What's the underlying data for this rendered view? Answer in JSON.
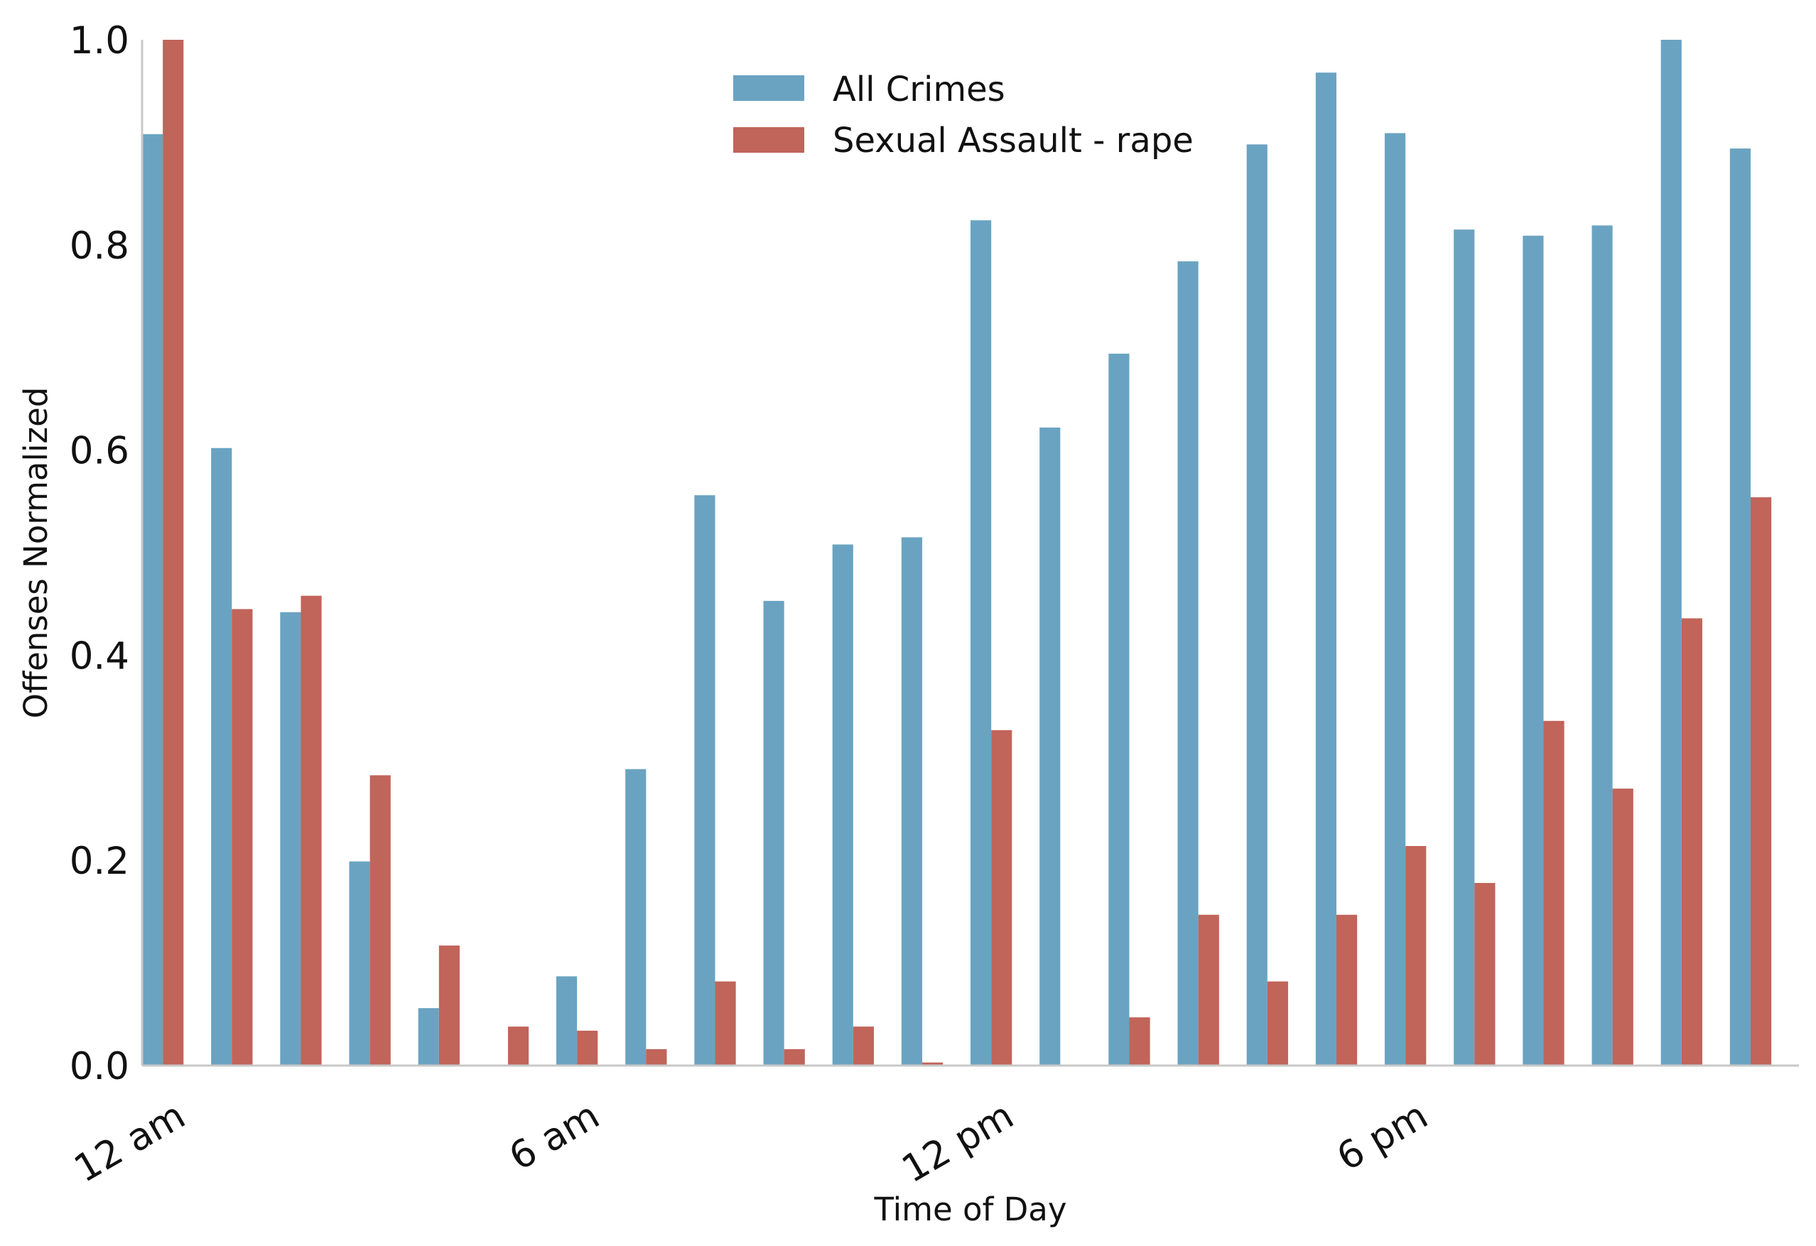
{
  "chart_data": {
    "type": "bar",
    "title": "",
    "xlabel": "Time of Day",
    "ylabel": "Offenses Normalized",
    "ylim": [
      0,
      1.0
    ],
    "yticks": [
      "0.0",
      "0.2",
      "0.4",
      "0.6",
      "0.8",
      "1.0"
    ],
    "xtick_labels": [
      "12 am",
      "6 am",
      "12 pm",
      "6 pm"
    ],
    "xtick_hours": [
      0,
      6,
      12,
      18
    ],
    "x": [
      0,
      1,
      2,
      3,
      4,
      5,
      6,
      7,
      8,
      9,
      10,
      11,
      12,
      13,
      14,
      15,
      16,
      17,
      18,
      19,
      20,
      21,
      22,
      23
    ],
    "grid": false,
    "legend_position": "top-center",
    "series": [
      {
        "name": "All Crimes",
        "color": "#6aa3c1",
        "values": [
          0.908,
          0.602,
          0.442,
          0.199,
          0.056,
          0.0,
          0.087,
          0.289,
          0.556,
          0.453,
          0.508,
          0.515,
          0.824,
          0.622,
          0.694,
          0.784,
          0.898,
          0.968,
          0.909,
          0.815,
          0.809,
          0.819,
          1.0,
          0.894
        ]
      },
      {
        "name": "Sexual Assault - rape",
        "color": "#c1645a",
        "values": [
          1.0,
          0.445,
          0.458,
          0.283,
          0.117,
          0.038,
          0.034,
          0.016,
          0.082,
          0.016,
          0.038,
          0.003,
          0.327,
          0.0,
          0.047,
          0.147,
          0.082,
          0.147,
          0.214,
          0.178,
          0.336,
          0.27,
          0.436,
          0.554
        ]
      }
    ]
  }
}
